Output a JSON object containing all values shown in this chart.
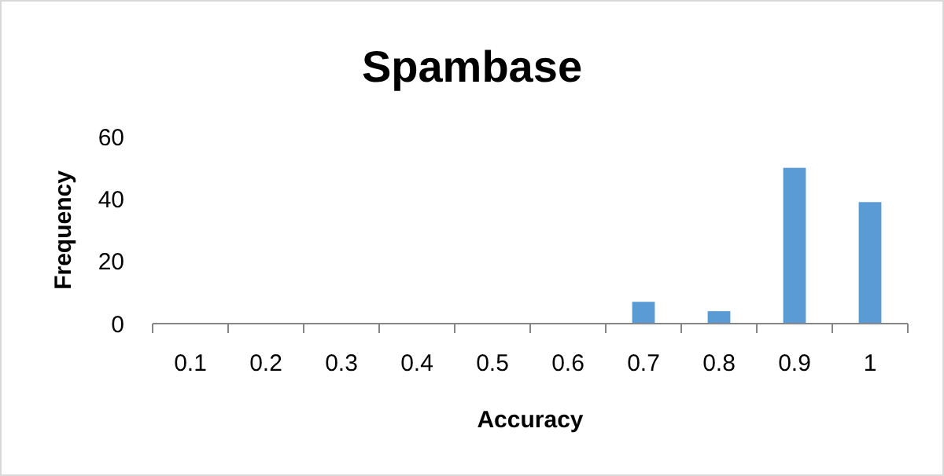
{
  "chart_data": {
    "type": "bar",
    "title": "Spambase",
    "xlabel": "Accuracy",
    "ylabel": "Frequency",
    "categories": [
      "0.1",
      "0.2",
      "0.3",
      "0.4",
      "0.5",
      "0.6",
      "0.7",
      "0.8",
      "0.9",
      "1"
    ],
    "values": [
      0,
      0,
      0,
      0,
      0,
      0,
      7,
      4,
      50,
      39
    ],
    "color": "#5b9bd5",
    "ylim": [
      0,
      60
    ],
    "yticks": [
      0,
      20,
      40,
      60
    ],
    "grid": false
  }
}
